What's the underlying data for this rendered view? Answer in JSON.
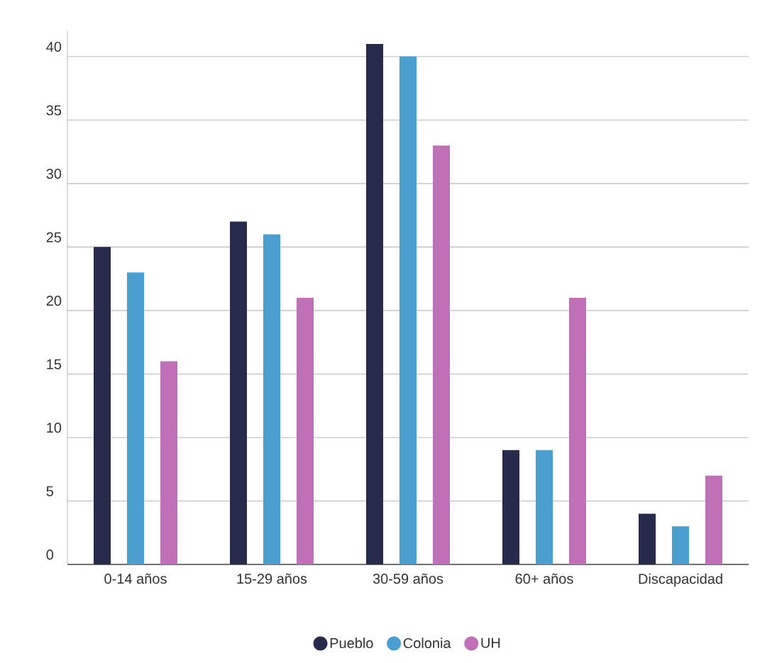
{
  "chart_data": {
    "type": "bar",
    "categories": [
      "0-14 años",
      "15-29 años",
      "30-59 años",
      "60+ años",
      "Discapacidad"
    ],
    "series": [
      {
        "name": "Pueblo",
        "color": "#272a4a",
        "values": [
          25,
          27,
          41,
          9,
          4
        ]
      },
      {
        "name": "Colonia",
        "color": "#4a9fd0",
        "values": [
          23,
          26,
          40,
          9,
          3
        ]
      },
      {
        "name": "UH",
        "color": "#c170b8",
        "values": [
          16,
          21,
          33,
          21,
          7
        ]
      }
    ],
    "ylim": [
      0,
      42
    ],
    "yticks": [
      0,
      5,
      10,
      15,
      20,
      25,
      30,
      35,
      40
    ],
    "grid": "y",
    "legend": "bottom"
  }
}
